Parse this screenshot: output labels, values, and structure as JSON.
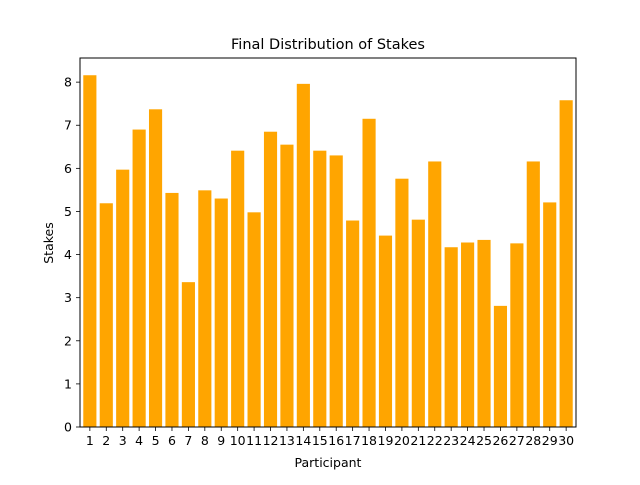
{
  "chart_data": {
    "type": "bar",
    "title": "Final Distribution of Stakes",
    "xlabel": "Participant",
    "ylabel": "Stakes",
    "ylim": [
      0,
      8.56
    ],
    "y_ticks": [
      0,
      1,
      2,
      3,
      4,
      5,
      6,
      7,
      8
    ],
    "grid": false,
    "legend": "none",
    "bar_color": "#FFA500",
    "categories": [
      "1",
      "2",
      "3",
      "4",
      "5",
      "6",
      "7",
      "8",
      "9",
      "10",
      "11",
      "12",
      "13",
      "14",
      "15",
      "16",
      "17",
      "18",
      "19",
      "20",
      "21",
      "22",
      "23",
      "24",
      "25",
      "26",
      "27",
      "28",
      "29",
      "30"
    ],
    "values": [
      8.16,
      5.19,
      5.97,
      6.9,
      7.37,
      5.43,
      3.36,
      5.49,
      5.3,
      6.41,
      4.98,
      6.85,
      6.55,
      7.96,
      6.41,
      6.3,
      4.79,
      7.15,
      4.44,
      5.76,
      4.81,
      6.16,
      4.17,
      4.28,
      4.34,
      2.81,
      4.26,
      6.16,
      5.21,
      7.58
    ]
  }
}
